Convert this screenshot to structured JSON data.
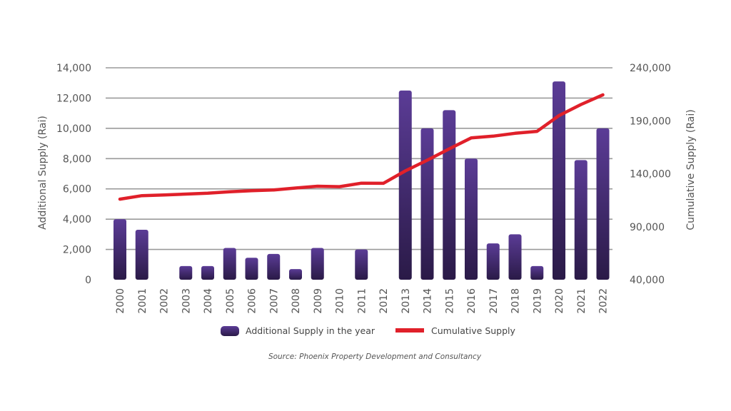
{
  "chart_data": {
    "type": "bar",
    "categories": [
      "2000",
      "2001",
      "2002",
      "2003",
      "2004",
      "2005",
      "2006",
      "2007",
      "2008",
      "2009",
      "2010",
      "2011",
      "2012",
      "2013",
      "2014",
      "2015",
      "2016",
      "2017",
      "2018",
      "2019",
      "2020",
      "2021",
      "2022"
    ],
    "series": [
      {
        "name": "Additional Supply in the year",
        "type": "bar",
        "axis": "left",
        "values": [
          4000,
          3300,
          0,
          900,
          900,
          2100,
          1450,
          1700,
          700,
          2100,
          0,
          2000,
          0,
          12500,
          10000,
          11200,
          8000,
          2400,
          3000,
          900,
          13100,
          7900,
          10000
        ]
      },
      {
        "name": "Cumulative Supply",
        "type": "line",
        "axis": "right",
        "values": [
          116000,
          119300,
          119900,
          120800,
          121700,
          123000,
          124000,
          124700,
          126500,
          128200,
          127800,
          131100,
          131000,
          142700,
          152800,
          163500,
          173800,
          175500,
          178200,
          180000,
          194900,
          205300,
          214500
        ]
      }
    ],
    "left_axis": {
      "label": "Additional Supply  (Rai)",
      "min": 0,
      "max": 14000,
      "ticks": [
        0,
        2000,
        4000,
        6000,
        8000,
        10000,
        12000,
        14000
      ],
      "tick_labels": [
        "0",
        "2,000",
        "4,000",
        "6,000",
        "8,000",
        "10,000",
        "12,000",
        "14,000"
      ]
    },
    "right_axis": {
      "label": "Cumulative Supply (Rai)",
      "min": 40000,
      "max": 240000,
      "ticks": [
        40000,
        90000,
        140000,
        190000,
        240000
      ],
      "tick_labels": [
        "40,000",
        "90,000",
        "140,000",
        "190,000",
        "240,000"
      ]
    },
    "grid": true,
    "legend_position": "bottom-center",
    "legend": [
      {
        "label": "Additional Supply in the year",
        "kind": "bar"
      },
      {
        "label": "Cumulative Supply",
        "kind": "line"
      }
    ],
    "source": "Source: Phoenix Property Development and Consultancy",
    "colors": {
      "bar_top": "#5b3c96",
      "bar_bottom": "#2a1a47",
      "line": "#e0202a",
      "grid": "#9a9a9a",
      "text": "#555555"
    }
  }
}
